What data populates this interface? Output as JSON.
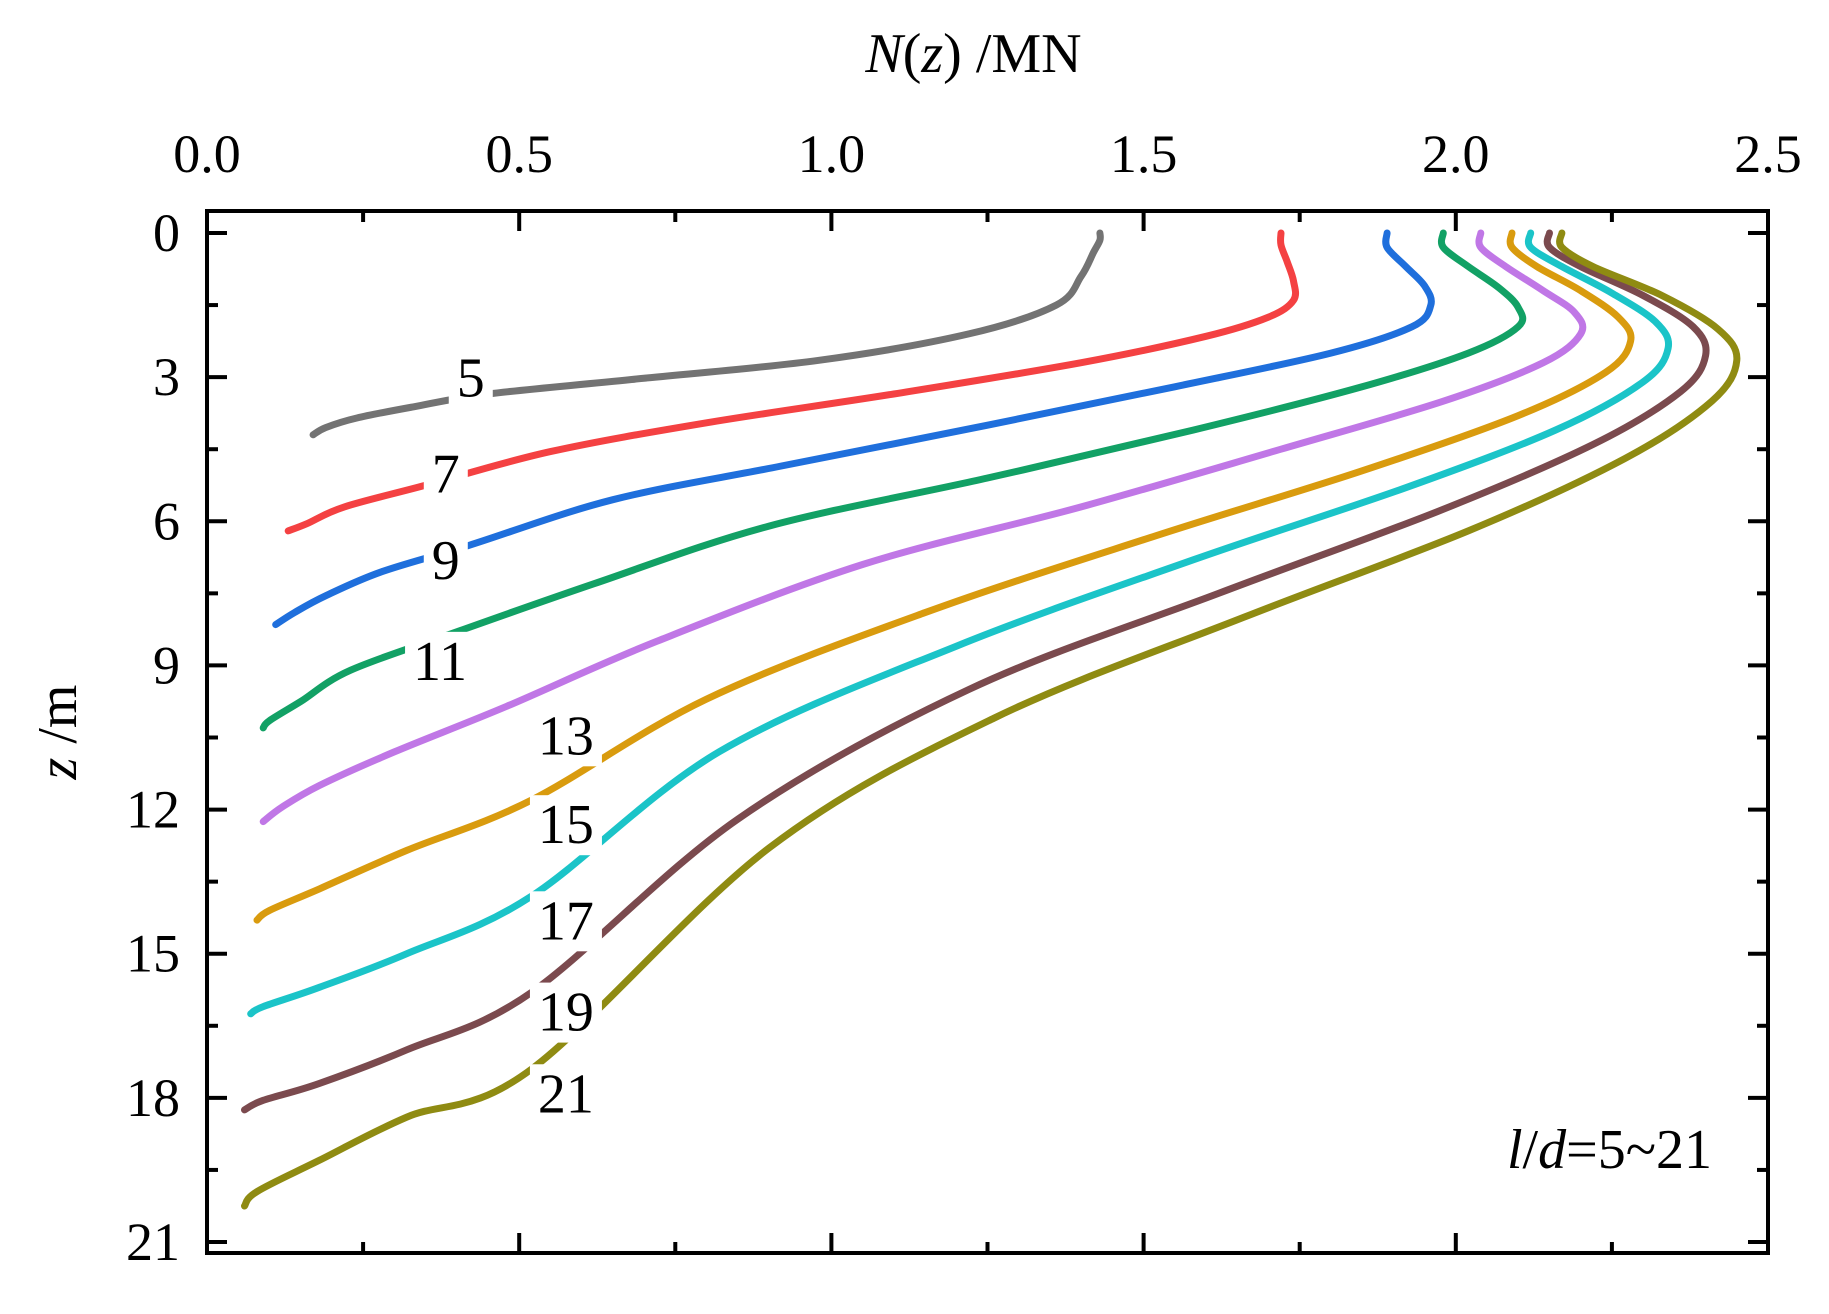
{
  "chart_data": {
    "type": "line",
    "xlabel": {
      "var": "N",
      "open": "(",
      "arg": "z",
      "close": ")",
      "unit": " /MN"
    },
    "ylabel": {
      "var": "z",
      "unit": " /m"
    },
    "xlim": [
      0,
      2.5
    ],
    "ylim": [
      0,
      21
    ],
    "y_inverted": true,
    "x_axis_position": "top",
    "x_ticks": [
      "0.0",
      "0.5",
      "1.0",
      "1.5",
      "2.0",
      "2.5"
    ],
    "y_ticks": [
      "0",
      "3",
      "6",
      "9",
      "12",
      "15",
      "18",
      "21"
    ],
    "grid": false,
    "annotation": {
      "l": "l",
      "slash": "/",
      "d": "d",
      "rest": "=5~21"
    },
    "series": [
      {
        "name": "5",
        "color": "#737373",
        "points": [
          [
            1.43,
            0
          ],
          [
            1.43,
            0.15
          ],
          [
            1.42,
            0.4
          ],
          [
            1.4,
            0.9
          ],
          [
            1.36,
            1.5
          ],
          [
            1.22,
            2.1
          ],
          [
            0.98,
            2.65
          ],
          [
            0.68,
            3.05
          ],
          [
            0.45,
            3.35
          ],
          [
            0.33,
            3.62
          ],
          [
            0.24,
            3.85
          ],
          [
            0.19,
            4.05
          ],
          [
            0.17,
            4.2
          ]
        ],
        "label_pos": [
          0.4,
          3.4
        ]
      },
      {
        "name": "7",
        "color": "#f44142",
        "points": [
          [
            1.72,
            0
          ],
          [
            1.72,
            0.25
          ],
          [
            1.73,
            0.6
          ],
          [
            1.74,
            1.0
          ],
          [
            1.74,
            1.4
          ],
          [
            1.7,
            1.75
          ],
          [
            1.6,
            2.15
          ],
          [
            1.4,
            2.7
          ],
          [
            1.1,
            3.35
          ],
          [
            0.8,
            3.95
          ],
          [
            0.55,
            4.55
          ],
          [
            0.35,
            5.25
          ],
          [
            0.22,
            5.7
          ],
          [
            0.16,
            6.05
          ],
          [
            0.13,
            6.2
          ]
        ],
        "label_pos": [
          0.36,
          5.4
        ]
      },
      {
        "name": "9",
        "color": "#1f6fdc",
        "points": [
          [
            1.89,
            0
          ],
          [
            1.89,
            0.3
          ],
          [
            1.92,
            0.7
          ],
          [
            1.95,
            1.1
          ],
          [
            1.96,
            1.5
          ],
          [
            1.93,
            1.95
          ],
          [
            1.8,
            2.5
          ],
          [
            1.55,
            3.2
          ],
          [
            1.25,
            4.0
          ],
          [
            0.92,
            4.85
          ],
          [
            0.65,
            5.55
          ],
          [
            0.42,
            6.5
          ],
          [
            0.28,
            7.05
          ],
          [
            0.19,
            7.55
          ],
          [
            0.14,
            7.9
          ],
          [
            0.11,
            8.15
          ]
        ],
        "label_pos": [
          0.36,
          7.2
        ]
      },
      {
        "name": "11",
        "color": "#12a165",
        "points": [
          [
            1.98,
            0
          ],
          [
            1.98,
            0.3
          ],
          [
            2.02,
            0.7
          ],
          [
            2.07,
            1.15
          ],
          [
            2.1,
            1.55
          ],
          [
            2.1,
            1.95
          ],
          [
            2.02,
            2.5
          ],
          [
            1.85,
            3.2
          ],
          [
            1.58,
            4.1
          ],
          [
            1.25,
            5.1
          ],
          [
            0.9,
            6.1
          ],
          [
            0.62,
            7.3
          ],
          [
            0.4,
            8.3
          ],
          [
            0.23,
            9.1
          ],
          [
            0.15,
            9.75
          ],
          [
            0.1,
            10.15
          ],
          [
            0.09,
            10.3
          ]
        ],
        "label_pos": [
          0.33,
          9.3
        ]
      },
      {
        "name": "13",
        "color": "#c077e6",
        "points": [
          [
            2.04,
            0
          ],
          [
            2.04,
            0.3
          ],
          [
            2.08,
            0.7
          ],
          [
            2.14,
            1.2
          ],
          [
            2.19,
            1.65
          ],
          [
            2.2,
            2.1
          ],
          [
            2.14,
            2.7
          ],
          [
            1.98,
            3.5
          ],
          [
            1.72,
            4.5
          ],
          [
            1.4,
            5.7
          ],
          [
            1.05,
            6.9
          ],
          [
            0.72,
            8.5
          ],
          [
            0.48,
            9.85
          ],
          [
            0.3,
            10.8
          ],
          [
            0.18,
            11.5
          ],
          [
            0.12,
            11.95
          ],
          [
            0.09,
            12.25
          ]
        ],
        "label_pos": [
          0.53,
          10.85
        ]
      },
      {
        "name": "15",
        "color": "#d99b0e",
        "points": [
          [
            2.09,
            0
          ],
          [
            2.09,
            0.3
          ],
          [
            2.13,
            0.7
          ],
          [
            2.2,
            1.2
          ],
          [
            2.26,
            1.75
          ],
          [
            2.28,
            2.25
          ],
          [
            2.24,
            2.9
          ],
          [
            2.1,
            3.8
          ],
          [
            1.85,
            4.95
          ],
          [
            1.52,
            6.3
          ],
          [
            1.15,
            7.9
          ],
          [
            0.8,
            9.7
          ],
          [
            0.52,
            11.8
          ],
          [
            0.32,
            12.85
          ],
          [
            0.18,
            13.65
          ],
          [
            0.1,
            14.1
          ],
          [
            0.08,
            14.3
          ]
        ],
        "label_pos": [
          0.53,
          12.7
        ]
      },
      {
        "name": "17",
        "color": "#1bc4c8",
        "points": [
          [
            2.12,
            0
          ],
          [
            2.12,
            0.3
          ],
          [
            2.17,
            0.7
          ],
          [
            2.25,
            1.25
          ],
          [
            2.32,
            1.85
          ],
          [
            2.34,
            2.4
          ],
          [
            2.3,
            3.1
          ],
          [
            2.16,
            4.1
          ],
          [
            1.92,
            5.3
          ],
          [
            1.58,
            6.8
          ],
          [
            1.2,
            8.6
          ],
          [
            0.82,
            10.8
          ],
          [
            0.52,
            13.8
          ],
          [
            0.32,
            15.0
          ],
          [
            0.18,
            15.7
          ],
          [
            0.09,
            16.1
          ],
          [
            0.07,
            16.25
          ]
        ],
        "label_pos": [
          0.53,
          14.7
        ]
      },
      {
        "name": "19",
        "color": "#7b4a4e",
        "points": [
          [
            2.15,
            0
          ],
          [
            2.15,
            0.3
          ],
          [
            2.2,
            0.7
          ],
          [
            2.3,
            1.3
          ],
          [
            2.38,
            1.95
          ],
          [
            2.4,
            2.55
          ],
          [
            2.36,
            3.3
          ],
          [
            2.22,
            4.4
          ],
          [
            1.97,
            5.8
          ],
          [
            1.62,
            7.5
          ],
          [
            1.22,
            9.5
          ],
          [
            0.85,
            12.2
          ],
          [
            0.52,
            15.8
          ],
          [
            0.32,
            17.0
          ],
          [
            0.18,
            17.7
          ],
          [
            0.09,
            18.05
          ],
          [
            0.06,
            18.25
          ]
        ],
        "label_pos": [
          0.53,
          16.6
        ]
      },
      {
        "name": "21",
        "color": "#8f8b12",
        "points": [
          [
            2.17,
            0
          ],
          [
            2.17,
            0.3
          ],
          [
            2.22,
            0.7
          ],
          [
            2.33,
            1.3
          ],
          [
            2.42,
            2.0
          ],
          [
            2.45,
            2.65
          ],
          [
            2.41,
            3.5
          ],
          [
            2.27,
            4.7
          ],
          [
            2.02,
            6.2
          ],
          [
            1.66,
            8.0
          ],
          [
            1.26,
            10.1
          ],
          [
            0.9,
            12.8
          ],
          [
            0.52,
            17.4
          ],
          [
            0.32,
            18.4
          ],
          [
            0.18,
            19.3
          ],
          [
            0.08,
            19.95
          ],
          [
            0.06,
            20.25
          ]
        ],
        "label_pos": [
          0.53,
          18.3
        ]
      }
    ]
  }
}
